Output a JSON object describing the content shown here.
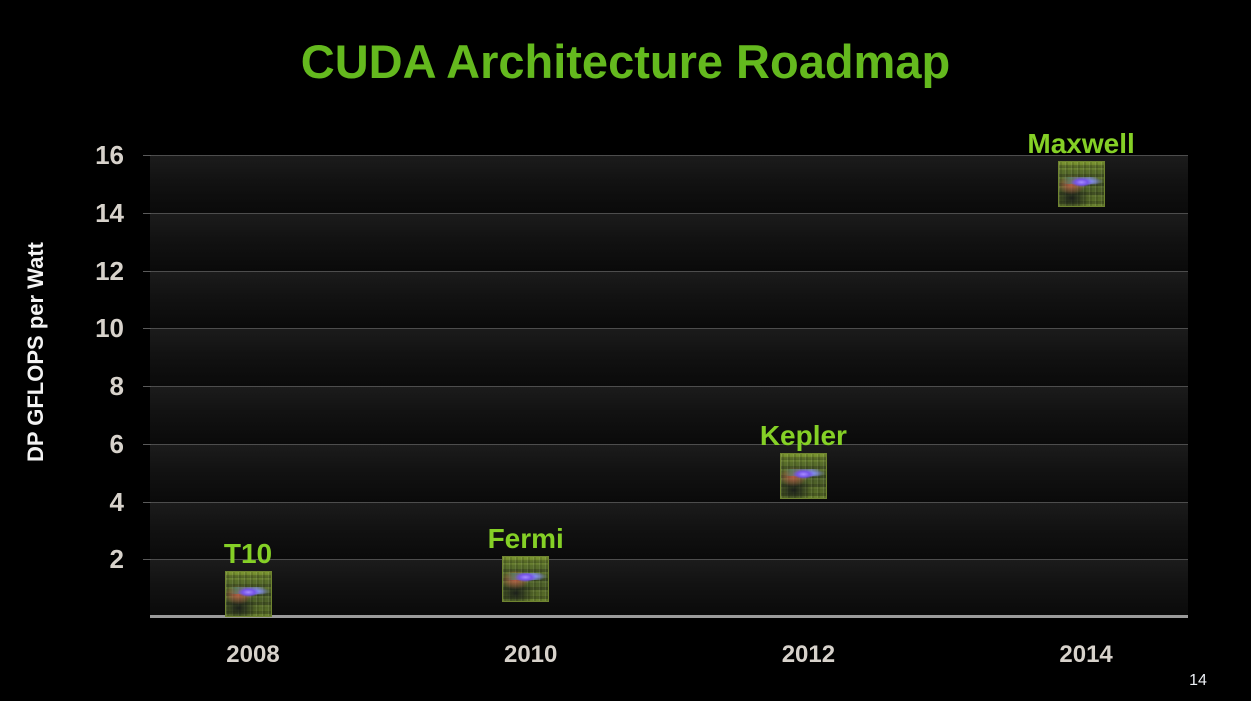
{
  "slide": {
    "title": "CUDA Architecture Roadmap",
    "page_number": "14",
    "colors": {
      "background": "#000000",
      "title_green": "#64b91e",
      "label_green": "#85d026",
      "tick_text": "#d7d2cb",
      "gridline": "#4d4d4d",
      "baseline": "#9b9b9b",
      "band_top": "#1c1c1c",
      "band_bottom": "#0a0a0a"
    }
  },
  "chart_data": {
    "type": "scatter",
    "title": "CUDA Architecture Roadmap",
    "xlabel": "",
    "ylabel": "DP GFLOPS per Watt",
    "x_ticks": [
      2008,
      2010,
      2012,
      2014
    ],
    "y_ticks": [
      2,
      4,
      6,
      8,
      10,
      12,
      14,
      16
    ],
    "ylim": [
      0,
      16
    ],
    "xlim": [
      2007.26,
      2014.73
    ],
    "grid": "horizontal-bands",
    "legend": "none",
    "marker": "gpu-die-photo",
    "points": [
      {
        "label": "T10",
        "x": 2008,
        "y": 0.8
      },
      {
        "label": "Fermi",
        "x": 2010,
        "y": 1.3
      },
      {
        "label": "Kepler",
        "x": 2012,
        "y": 4.9
      },
      {
        "label": "Maxwell",
        "x": 2014,
        "y": 15.0
      }
    ]
  }
}
